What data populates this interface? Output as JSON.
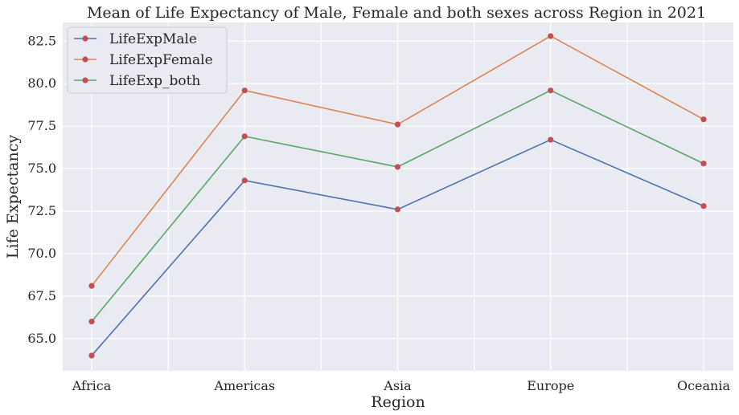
{
  "chart_data": {
    "type": "line",
    "title": "Mean of Life Expectancy of Male, Female and both sexes across Region in 2021",
    "xlabel": "Region",
    "ylabel": "Life Expectancy",
    "categories": [
      "Africa",
      "Americas",
      "Asia",
      "Europe",
      "Oceania"
    ],
    "ylim": [
      63.1,
      83.6
    ],
    "yticks": [
      65.0,
      67.5,
      70.0,
      72.5,
      75.0,
      77.5,
      80.0,
      82.5
    ],
    "ytick_labels": [
      "65.0",
      "67.5",
      "70.0",
      "72.5",
      "75.0",
      "77.5",
      "80.0",
      "82.5"
    ],
    "grid": true,
    "legend_position": "upper-left",
    "series": [
      {
        "name": "LifeExpMale",
        "color": "#4c72b0",
        "values": [
          64.0,
          74.3,
          72.6,
          76.7,
          72.8
        ]
      },
      {
        "name": "LifeExpFemale",
        "color": "#dd8452",
        "values": [
          68.1,
          79.6,
          77.6,
          82.8,
          77.9
        ]
      },
      {
        "name": "LifeExp_both",
        "color": "#55a868",
        "values": [
          66.0,
          76.9,
          75.1,
          79.6,
          75.3
        ]
      }
    ],
    "marker_color": "#c44e52",
    "background_color": "#eaeaf2"
  }
}
